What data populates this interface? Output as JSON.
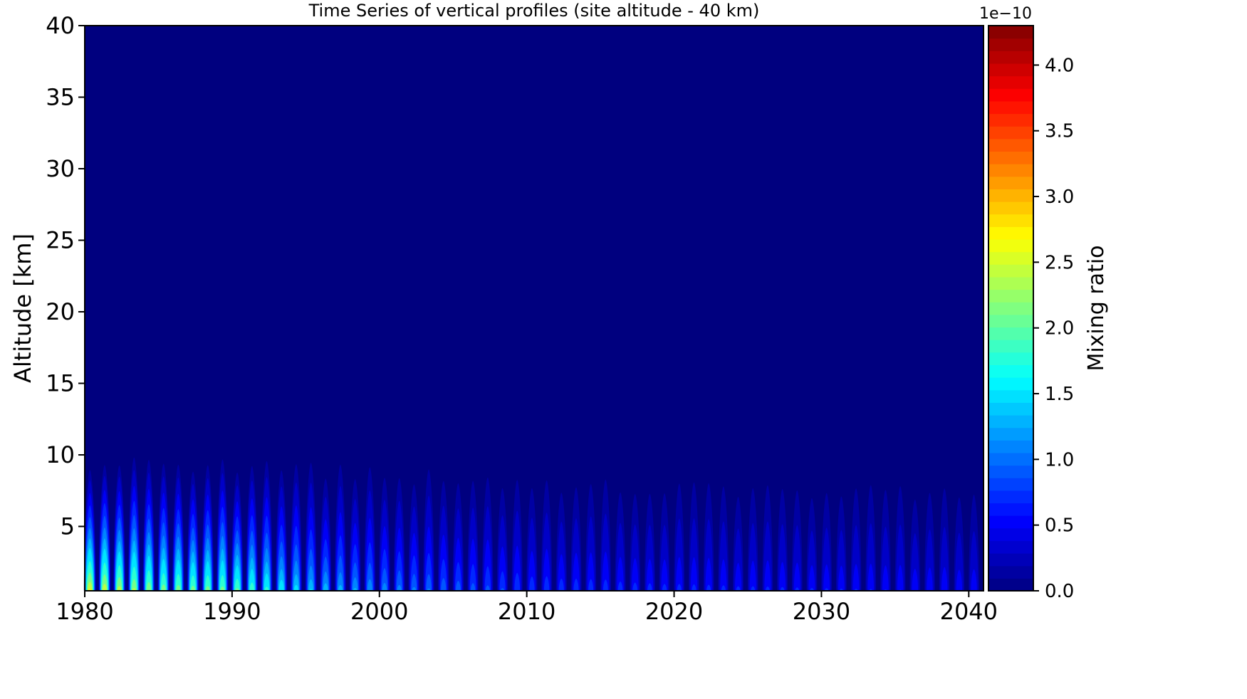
{
  "chart_data": {
    "type": "heatmap",
    "title": "Time Series of vertical profiles (site altitude - 40 km)",
    "xlabel": "",
    "ylabel": "Altitude [km]",
    "xlim": [
      1980,
      2041
    ],
    "ylim": [
      0.5,
      40
    ],
    "x_ticks": [
      "1980",
      "1990",
      "2000",
      "2010",
      "2020",
      "2030",
      "2040"
    ],
    "x_tick_values": [
      1980,
      1990,
      2000,
      2010,
      2020,
      2030,
      2040
    ],
    "y_ticks": [
      "5",
      "10",
      "15",
      "20",
      "25",
      "30",
      "35",
      "40"
    ],
    "y_tick_values": [
      5,
      10,
      15,
      20,
      25,
      30,
      35,
      40
    ],
    "colormap": "jet",
    "colorbar": {
      "label": "Mixing ratio",
      "offset_text": "1e−10",
      "range": [
        0.0,
        4.3
      ],
      "ticks": [
        "0.0",
        "0.5",
        "1.0",
        "1.5",
        "2.0",
        "2.5",
        "3.0",
        "3.5",
        "4.0"
      ],
      "tick_values": [
        0.0,
        0.5,
        1.0,
        1.5,
        2.0,
        2.5,
        3.0,
        3.5,
        4.0
      ],
      "levels": 45
    },
    "background_color": "#00007f",
    "seasonal_peaks": {
      "period_years": 1,
      "typical_top_altitude_km": 10,
      "max_top_altitude_km": 11,
      "surface_peak_values": [
        {
          "year": 1980,
          "value": 2.9
        },
        {
          "year": 1985,
          "value": 2.4
        },
        {
          "year": 1990,
          "value": 2.3
        },
        {
          "year": 1995,
          "value": 1.6
        },
        {
          "year": 2000,
          "value": 1.3
        },
        {
          "year": 2010,
          "value": 0.9
        },
        {
          "year": 2020,
          "value": 0.8
        },
        {
          "year": 2030,
          "value": 0.75
        },
        {
          "year": 2040,
          "value": 0.7
        }
      ]
    }
  }
}
